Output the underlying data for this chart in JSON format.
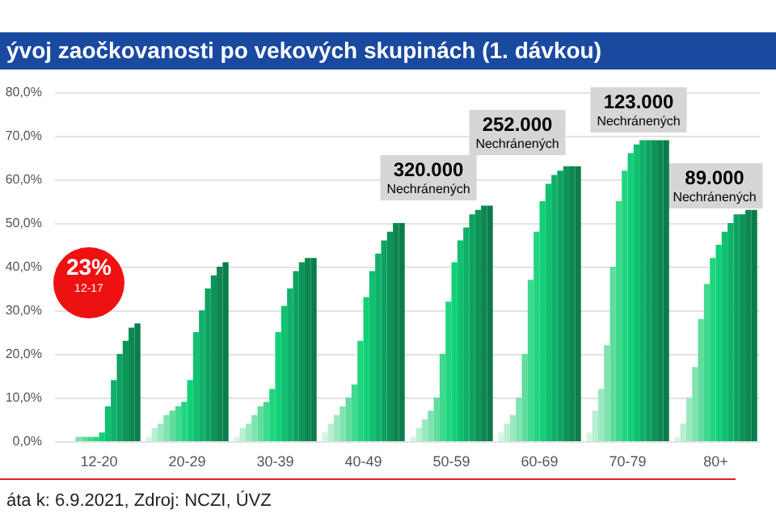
{
  "chart_data": {
    "type": "bar",
    "title": "ývoj zaočkovanosti po vekových skupinách (1. dávkou)",
    "categories": [
      "12-20",
      "20-29",
      "30-39",
      "40-49",
      "50-59",
      "60-69",
      "70-79",
      "80+"
    ],
    "series": [
      {
        "color": "#d5f5e3",
        "values": [
          0,
          1,
          1,
          2,
          1,
          2,
          2,
          1
        ]
      },
      {
        "color": "#b9efd2",
        "values": [
          0,
          3,
          3,
          4,
          3,
          4,
          7,
          4
        ]
      },
      {
        "color": "#9be9c0",
        "values": [
          0,
          4,
          4,
          6,
          5,
          6,
          12,
          10
        ]
      },
      {
        "color": "#7ee3ae",
        "values": [
          1,
          6,
          6,
          8,
          7,
          10,
          22,
          17
        ]
      },
      {
        "color": "#5fdd9c",
        "values": [
          1,
          7,
          8,
          10,
          10,
          20,
          40,
          28
        ]
      },
      {
        "color": "#3fd98b",
        "values": [
          1,
          8,
          9,
          13,
          20,
          37,
          55,
          36
        ]
      },
      {
        "color": "#1fd67f",
        "values": [
          1,
          9,
          12,
          23,
          32,
          48,
          62,
          42
        ]
      },
      {
        "color": "#12cf7a",
        "values": [
          2,
          14,
          25,
          33,
          41,
          55,
          66,
          45
        ]
      },
      {
        "color": "#10c171",
        "values": [
          8,
          25,
          31,
          39,
          46,
          59,
          68,
          48
        ]
      },
      {
        "color": "#0fb168",
        "values": [
          14,
          30,
          35,
          43,
          49,
          61,
          69,
          50
        ]
      },
      {
        "color": "#0ea260",
        "values": [
          20,
          35,
          39,
          46,
          52,
          62,
          69,
          52
        ]
      },
      {
        "color": "#0d9458",
        "values": [
          23,
          38,
          41,
          48,
          53,
          63,
          69,
          52
        ]
      },
      {
        "color": "#0c8751",
        "values": [
          26,
          40,
          42,
          50,
          54,
          63,
          69,
          53
        ]
      },
      {
        "color": "#0b7d4b",
        "values": [
          27,
          41,
          42,
          50,
          54,
          63,
          69,
          53
        ]
      }
    ],
    "ylim": [
      0,
      80
    ],
    "yticks": [
      {
        "value": 0,
        "label": "0,0%"
      },
      {
        "value": 10,
        "label": "10,0%"
      },
      {
        "value": 20,
        "label": "20,0%"
      },
      {
        "value": 30,
        "label": "30,0%"
      },
      {
        "value": 40,
        "label": "40,0%"
      },
      {
        "value": 50,
        "label": "50,0%"
      },
      {
        "value": 60,
        "label": "60,0%"
      },
      {
        "value": 70,
        "label": "70,0%"
      },
      {
        "value": 80,
        "label": "80,0%"
      }
    ],
    "grid": "y",
    "annotations": [
      "23%\n12-17",
      "320.000\nNechránených",
      "252.000\nNechránených",
      "123.000\nNechránených",
      "89.000\nNechránených",
      "áta k: 6.9.2021, Zdroj: NCZI, ÚVZ"
    ]
  }
}
